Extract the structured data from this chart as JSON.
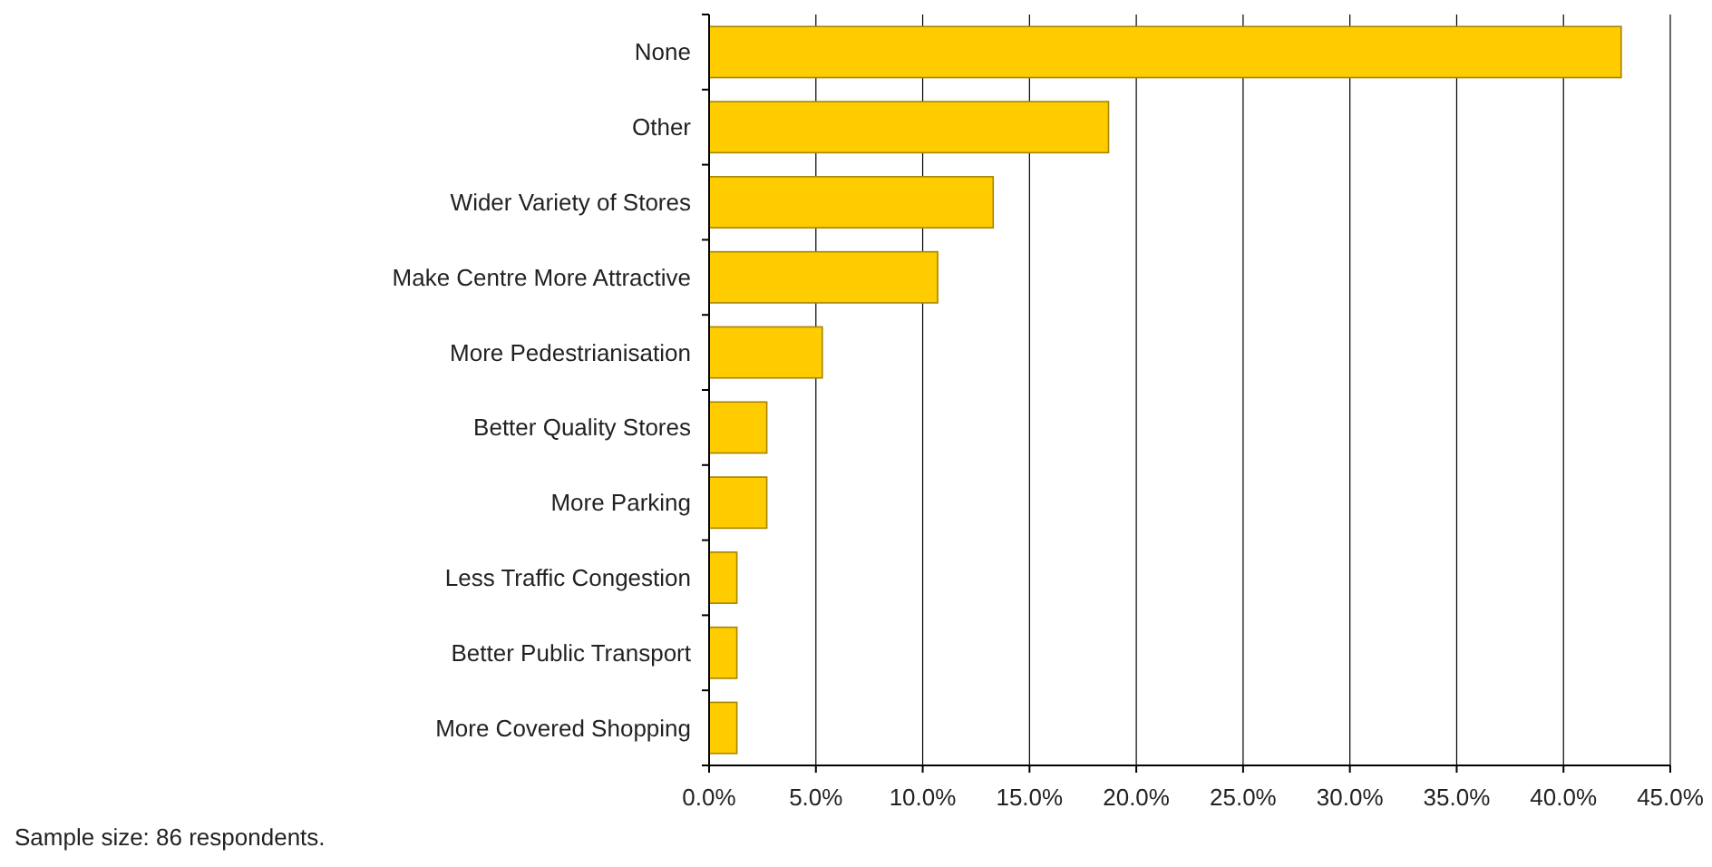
{
  "chart_data": {
    "type": "bar",
    "orientation": "horizontal",
    "categories": [
      "None",
      "Other",
      "Wider Variety of Stores",
      "Make Centre More Attractive",
      "More Pedestrianisation",
      "Better Quality Stores",
      "More Parking",
      "Less Traffic Congestion",
      "Better Public Transport",
      "More Covered Shopping"
    ],
    "values": [
      42.7,
      18.7,
      13.3,
      10.7,
      5.3,
      2.7,
      2.7,
      1.3,
      1.3,
      1.3
    ],
    "color": "#ffcc00",
    "xlim": [
      0,
      45
    ],
    "xticks": [
      {
        "value": 0,
        "label": "0.0%"
      },
      {
        "value": 5,
        "label": "5.0%"
      },
      {
        "value": 10,
        "label": "10.0%"
      },
      {
        "value": 15,
        "label": "15.0%"
      },
      {
        "value": 20,
        "label": "20.0%"
      },
      {
        "value": 25,
        "label": "25.0%"
      },
      {
        "value": 30,
        "label": "30.0%"
      },
      {
        "value": 35,
        "label": "35.0%"
      },
      {
        "value": 40,
        "label": "40.0%"
      },
      {
        "value": 45,
        "label": "45.0%"
      }
    ],
    "grid": "x",
    "annotations": [
      "Sample size: 86 respondents."
    ]
  }
}
